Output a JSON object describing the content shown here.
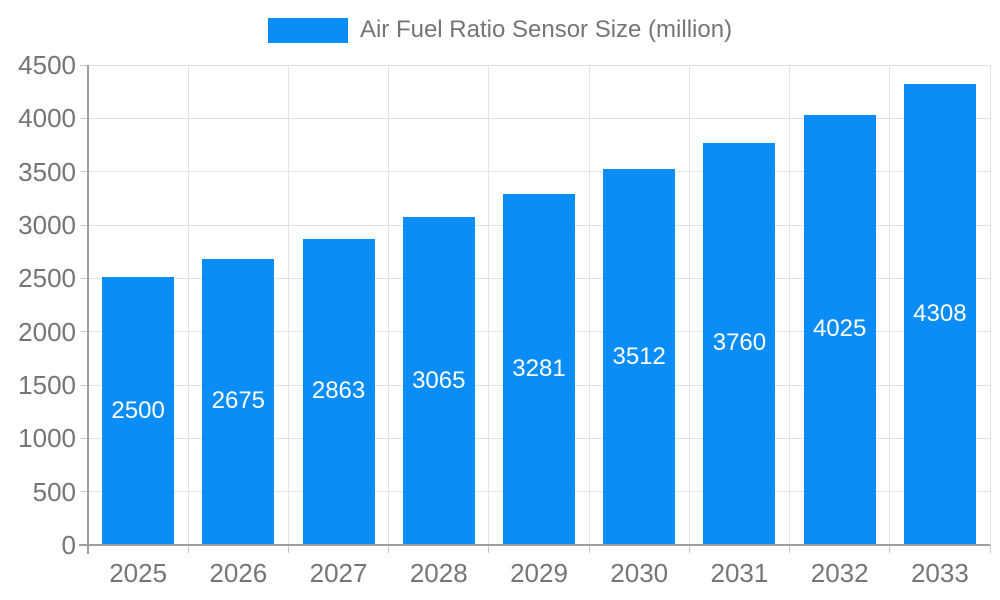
{
  "legend": {
    "label": "Air Fuel Ratio Sensor Size (million)"
  },
  "chart_data": {
    "type": "bar",
    "title": "Air Fuel Ratio Sensor Size (million)",
    "series_name": "Air Fuel Ratio Sensor Size (million)",
    "categories": [
      "2025",
      "2026",
      "2027",
      "2028",
      "2029",
      "2030",
      "2031",
      "2032",
      "2033"
    ],
    "values": [
      2500,
      2675,
      2863,
      3065,
      3281,
      3512,
      3760,
      4025,
      4308
    ],
    "xlabel": "",
    "ylabel": "",
    "ylim": [
      0,
      4500
    ],
    "ytick_step": 500,
    "y_ticks": [
      "0",
      "500",
      "1000",
      "1500",
      "2000",
      "2500",
      "3000",
      "3500",
      "4000",
      "4500"
    ],
    "grid": "on",
    "legend_position": "top-center",
    "value_labels": "inside-center-white"
  },
  "colors": {
    "bar": "#0b8df8",
    "bar_label": "#ffffff",
    "axis_text": "#757575",
    "legend_text": "#757575",
    "gridline": "#e3e3e3",
    "axis_line": "#9e9e9e",
    "tick": "#c9c9c9",
    "background": "#ffffff"
  }
}
